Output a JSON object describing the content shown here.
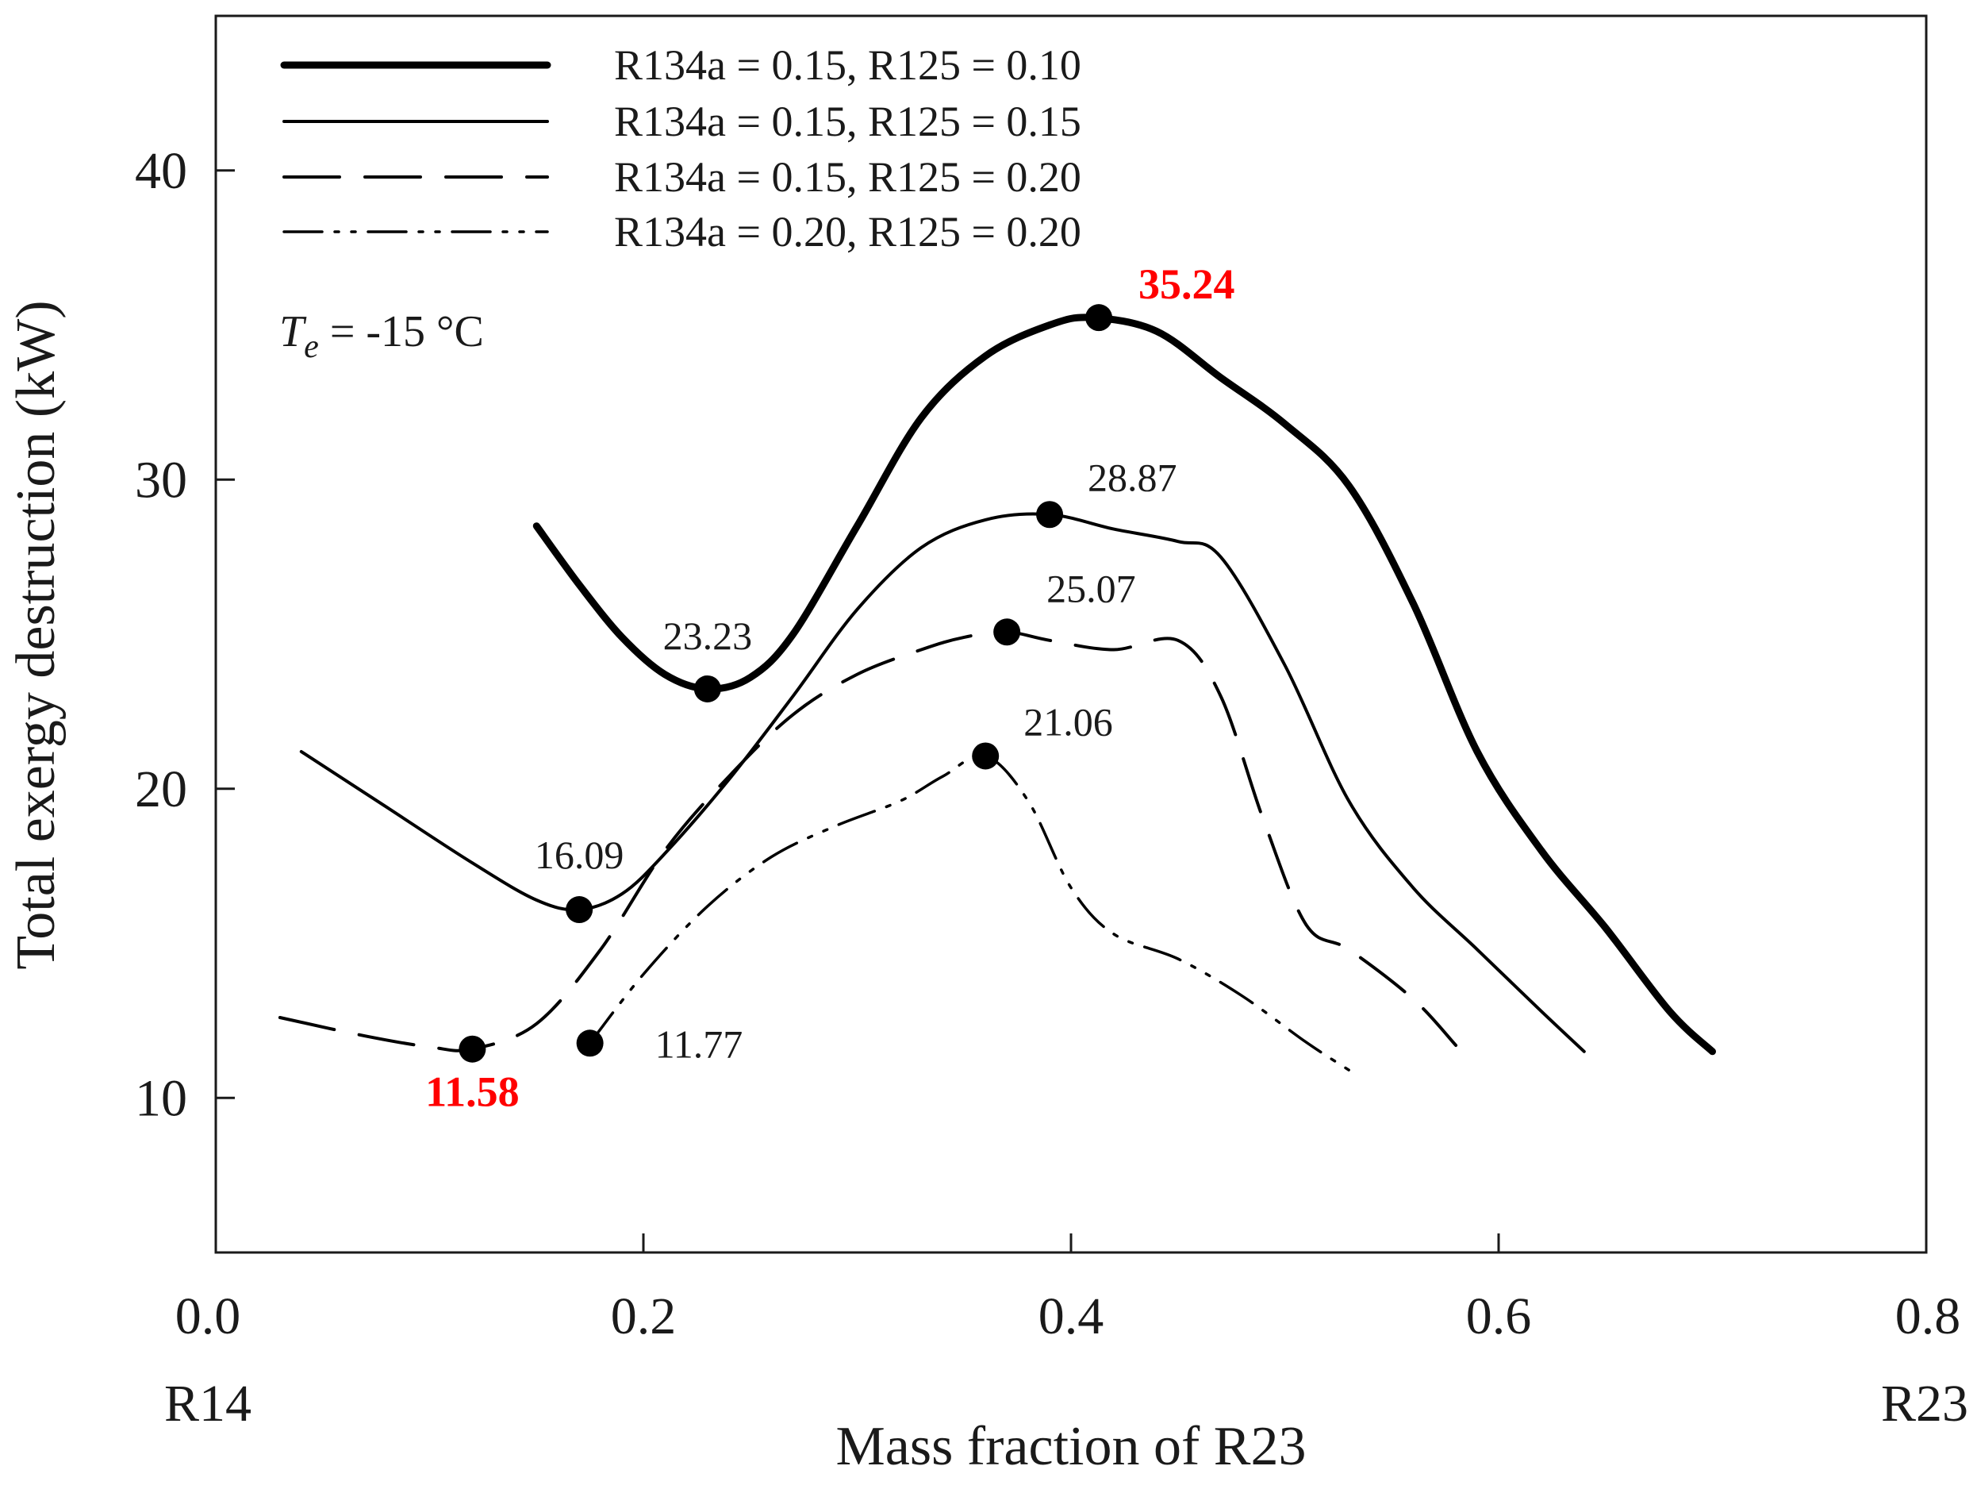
{
  "chart_data": {
    "type": "line",
    "title": "",
    "xlabel": "Mass fraction of R23",
    "ylabel": "Total exergy destruction (kW)",
    "xlim": [
      0.0,
      0.8
    ],
    "ylim": [
      5,
      45
    ],
    "grid": false,
    "legend_position": "top-left",
    "x_ticks": [
      0.0,
      0.2,
      0.4,
      0.6,
      0.8
    ],
    "x_tick_labels": [
      "0.0",
      "0.2",
      "0.4",
      "0.6",
      "0.8"
    ],
    "y_ticks": [
      10,
      20,
      30,
      40
    ],
    "y_tick_labels": [
      "10",
      "20",
      "30",
      "40"
    ],
    "x_end_labels": {
      "left": "R14",
      "right": "R23"
    },
    "condition_label": {
      "symbol": "T",
      "subscript": "e",
      "text": " = -15 °C"
    },
    "series": [
      {
        "name": "R134a = 0.15, R125 = 0.10",
        "style": "thick-solid",
        "x": [
          0.15,
          0.17,
          0.19,
          0.21,
          0.23,
          0.25,
          0.27,
          0.3,
          0.33,
          0.36,
          0.39,
          0.41,
          0.44,
          0.47,
          0.5,
          0.53,
          0.56,
          0.59,
          0.62,
          0.65,
          0.68,
          0.7
        ],
        "y": [
          28.5,
          26.6,
          24.9,
          23.7,
          23.23,
          23.6,
          25.0,
          28.5,
          32.0,
          34.0,
          35.0,
          35.24,
          34.8,
          33.3,
          31.8,
          29.8,
          26.0,
          21.2,
          18.0,
          15.5,
          12.8,
          11.5
        ],
        "marker": {
          "x": 0.23,
          "y": 23.23,
          "label": "23.23"
        }
      },
      {
        "name": "R134a = 0.15, R125 = 0.15",
        "style": "thin-solid",
        "x": [
          0.04,
          0.08,
          0.12,
          0.15,
          0.17,
          0.19,
          0.21,
          0.24,
          0.27,
          0.3,
          0.33,
          0.36,
          0.39,
          0.42,
          0.45,
          0.47,
          0.5,
          0.53,
          0.56,
          0.59,
          0.62,
          0.64
        ],
        "y": [
          21.2,
          19.4,
          17.6,
          16.4,
          16.09,
          16.6,
          17.9,
          20.3,
          23.0,
          25.8,
          27.8,
          28.7,
          28.87,
          28.4,
          28.0,
          27.5,
          24.0,
          19.6,
          16.8,
          14.8,
          12.8,
          11.5
        ],
        "marker": {
          "x": 0.17,
          "y": 16.09,
          "label": "16.09"
        }
      },
      {
        "name": "R134a = 0.15, R125 = 0.20",
        "style": "dashed",
        "x": [
          0.03,
          0.07,
          0.1,
          0.12,
          0.15,
          0.18,
          0.21,
          0.24,
          0.27,
          0.3,
          0.33,
          0.35,
          0.37,
          0.39,
          0.42,
          0.45,
          0.47,
          0.49,
          0.51,
          0.53,
          0.56,
          0.58
        ],
        "y": [
          12.6,
          12.0,
          11.65,
          11.58,
          12.4,
          14.8,
          18.0,
          20.4,
          22.4,
          23.7,
          24.5,
          24.9,
          25.07,
          24.8,
          24.5,
          24.8,
          23.0,
          19.0,
          15.6,
          14.8,
          13.2,
          11.7
        ],
        "marker": {
          "x": 0.12,
          "y": 11.58,
          "label": "11.58"
        }
      },
      {
        "name": "R134a = 0.20, R125 = 0.20",
        "style": "dash-dot-dot",
        "x": [
          0.175,
          0.2,
          0.23,
          0.26,
          0.29,
          0.32,
          0.34,
          0.36,
          0.38,
          0.4,
          0.42,
          0.45,
          0.48,
          0.51,
          0.53
        ],
        "y": [
          11.77,
          14.0,
          16.2,
          17.8,
          18.8,
          19.6,
          20.4,
          21.06,
          19.6,
          16.8,
          15.3,
          14.5,
          13.3,
          11.8,
          10.9
        ],
        "marker": {
          "x": 0.175,
          "y": 11.77,
          "label": "11.77"
        }
      }
    ],
    "annotations": [
      {
        "text": "35.24",
        "x": 0.413,
        "y": 35.24,
        "color": "#ff0000",
        "bold": true
      },
      {
        "text": "28.87",
        "x": 0.39,
        "y": 28.87,
        "color": "#000000",
        "bold": false
      },
      {
        "text": "25.07",
        "x": 0.37,
        "y": 25.07,
        "color": "#000000",
        "bold": false
      },
      {
        "text": "21.06",
        "x": 0.36,
        "y": 21.06,
        "color": "#000000",
        "bold": false
      }
    ],
    "colors": {
      "line": "#000000",
      "highlight": "#ff0000"
    }
  }
}
